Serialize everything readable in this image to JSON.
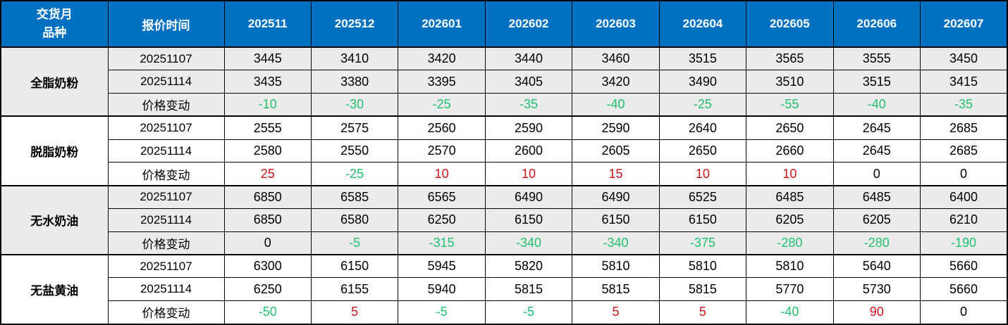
{
  "colors": {
    "header_bg": "#0070C0",
    "header_text": "#FFFFFF",
    "band_gray": "#EBEBEB",
    "band_white": "#FFFFFF",
    "positive_change": "#D0121B",
    "negative_change": "#21C06E",
    "zero_change": "#000000",
    "border": "#000000"
  },
  "chart_data": {
    "type": "table",
    "header": {
      "corner": [
        "交货月",
        "品种"
      ],
      "quote_time": "报价时间",
      "months": [
        "202511",
        "202512",
        "202601",
        "202602",
        "202603",
        "202604",
        "202605",
        "202606",
        "202607"
      ]
    },
    "groups": [
      {
        "product": "全脂奶粉",
        "rows": [
          {
            "label": "20251107",
            "is_change": false,
            "values": [
              "3445",
              "3410",
              "3420",
              "3440",
              "3460",
              "3515",
              "3565",
              "3555",
              "3450"
            ]
          },
          {
            "label": "20251114",
            "is_change": false,
            "values": [
              "3435",
              "3380",
              "3395",
              "3405",
              "3420",
              "3490",
              "3510",
              "3515",
              "3415"
            ]
          },
          {
            "label": "价格变动",
            "is_change": true,
            "values": [
              "-10",
              "-30",
              "-25",
              "-35",
              "-40",
              "-25",
              "-55",
              "-40",
              "-35"
            ]
          }
        ]
      },
      {
        "product": "脱脂奶粉",
        "rows": [
          {
            "label": "20251107",
            "is_change": false,
            "values": [
              "2555",
              "2575",
              "2560",
              "2590",
              "2590",
              "2640",
              "2650",
              "2645",
              "2685"
            ]
          },
          {
            "label": "20251114",
            "is_change": false,
            "values": [
              "2580",
              "2550",
              "2570",
              "2600",
              "2605",
              "2650",
              "2660",
              "2645",
              "2685"
            ]
          },
          {
            "label": "价格变动",
            "is_change": true,
            "values": [
              "25",
              "-25",
              "10",
              "10",
              "15",
              "10",
              "10",
              "0",
              "0"
            ]
          }
        ]
      },
      {
        "product": "无水奶油",
        "rows": [
          {
            "label": "20251107",
            "is_change": false,
            "values": [
              "6850",
              "6585",
              "6565",
              "6490",
              "6490",
              "6525",
              "6485",
              "6485",
              "6400"
            ]
          },
          {
            "label": "20251114",
            "is_change": false,
            "values": [
              "6850",
              "6580",
              "6250",
              "6150",
              "6150",
              "6150",
              "6205",
              "6205",
              "6210"
            ]
          },
          {
            "label": "价格变动",
            "is_change": true,
            "values": [
              "0",
              "-5",
              "-315",
              "-340",
              "-340",
              "-375",
              "-280",
              "-280",
              "-190"
            ]
          }
        ]
      },
      {
        "product": "无盐黄油",
        "rows": [
          {
            "label": "20251107",
            "is_change": false,
            "values": [
              "6300",
              "6150",
              "5945",
              "5820",
              "5810",
              "5810",
              "5810",
              "5640",
              "5660"
            ]
          },
          {
            "label": "20251114",
            "is_change": false,
            "values": [
              "6250",
              "6155",
              "5940",
              "5815",
              "5815",
              "5815",
              "5770",
              "5730",
              "5660"
            ]
          },
          {
            "label": "价格变动",
            "is_change": true,
            "values": [
              "-50",
              "5",
              "-5",
              "-5",
              "5",
              "5",
              "-40",
              "90",
              "0"
            ]
          }
        ]
      }
    ]
  }
}
